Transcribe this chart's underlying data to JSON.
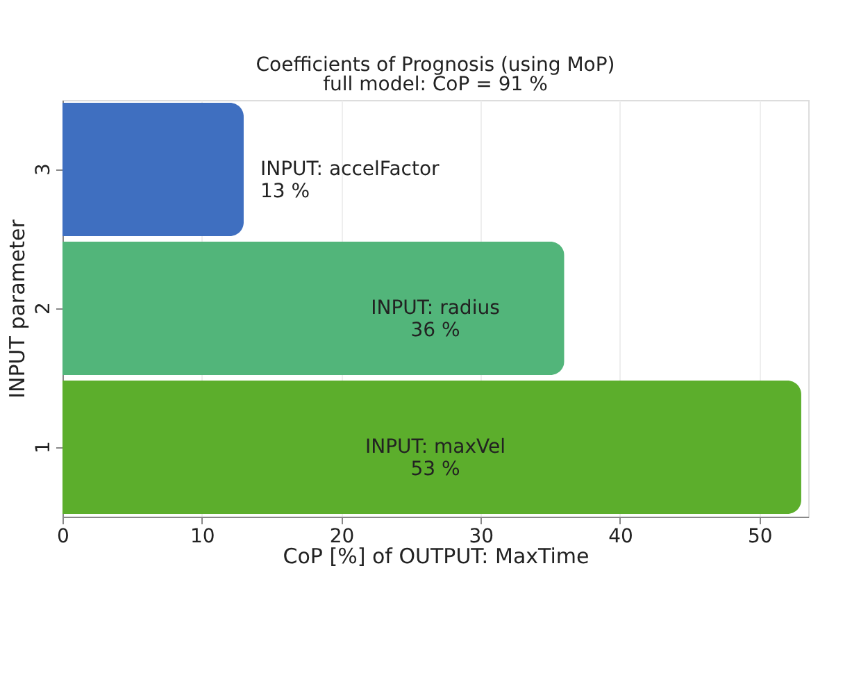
{
  "chart_data": {
    "type": "bar",
    "orientation": "horizontal",
    "title": "Coefficients of Prognosis (using MoP)",
    "subtitle": "full model: CoP =    91 %",
    "xlabel": "CoP [%] of OUTPUT: MaxTime",
    "ylabel": "INPUT parameter",
    "categories": [
      "3",
      "2",
      "1"
    ],
    "values": [
      13,
      36,
      53
    ],
    "colors": [
      "#3f6fc0",
      "#52b57a",
      "#5cae2c"
    ],
    "value_labels": [
      "INPUT: accelFactor\n13 %",
      "INPUT: radius\n36 %",
      "INPUT: maxVel\n53 %"
    ],
    "xlim": [
      0,
      53.5
    ],
    "xticks": [
      0,
      10,
      20,
      30,
      40,
      50
    ],
    "grid": true
  }
}
